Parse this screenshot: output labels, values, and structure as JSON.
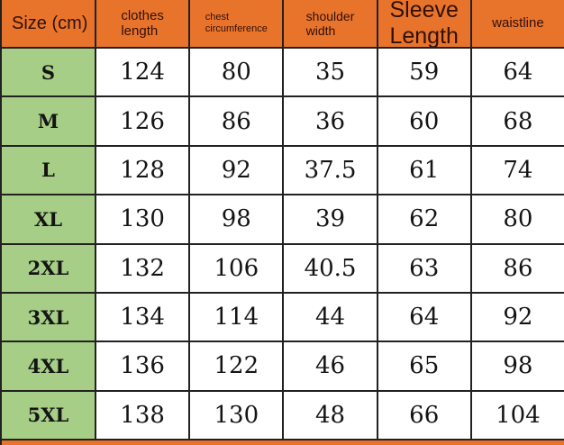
{
  "colors": {
    "header_bg": "#e8742c",
    "size_column_bg": "#a6ce87",
    "cell_bg": "#ffffff",
    "border": "#222120",
    "header_text": "#31100a",
    "cell_text": "#141414"
  },
  "table": {
    "header_size_label": "Size (cm)",
    "columns": [
      "clothes\nlength",
      "chest\ncircumference",
      "shoulder\nwidth",
      "Sleeve\nLength",
      "waistline"
    ],
    "rows": [
      {
        "size": "S",
        "values": [
          "124",
          "80",
          "35",
          "59",
          "64"
        ]
      },
      {
        "size": "M",
        "values": [
          "126",
          "86",
          "36",
          "60",
          "68"
        ]
      },
      {
        "size": "L",
        "values": [
          "128",
          "92",
          "37.5",
          "61",
          "74"
        ]
      },
      {
        "size": "XL",
        "values": [
          "130",
          "98",
          "39",
          "62",
          "80"
        ]
      },
      {
        "size": "2XL",
        "values": [
          "132",
          "106",
          "40.5",
          "63",
          "86"
        ]
      },
      {
        "size": "3XL",
        "values": [
          "134",
          "114",
          "44",
          "64",
          "92"
        ]
      },
      {
        "size": "4XL",
        "values": [
          "136",
          "122",
          "46",
          "65",
          "98"
        ]
      },
      {
        "size": "5XL",
        "values": [
          "138",
          "130",
          "48",
          "66",
          "104"
        ]
      }
    ]
  },
  "chart_data": {
    "type": "table",
    "title": "Size (cm)",
    "columns": [
      "Size (cm)",
      "clothes length",
      "chest circumference",
      "shoulder width",
      "Sleeve Length",
      "waistline"
    ],
    "rows": [
      [
        "S",
        124,
        80,
        35,
        59,
        64
      ],
      [
        "M",
        126,
        86,
        36,
        60,
        68
      ],
      [
        "L",
        128,
        92,
        37.5,
        61,
        74
      ],
      [
        "XL",
        130,
        98,
        39,
        62,
        80
      ],
      [
        "2XL",
        132,
        106,
        40.5,
        63,
        86
      ],
      [
        "3XL",
        134,
        114,
        44,
        64,
        92
      ],
      [
        "4XL",
        136,
        122,
        46,
        65,
        98
      ],
      [
        "5XL",
        138,
        130,
        48,
        66,
        104
      ]
    ]
  }
}
